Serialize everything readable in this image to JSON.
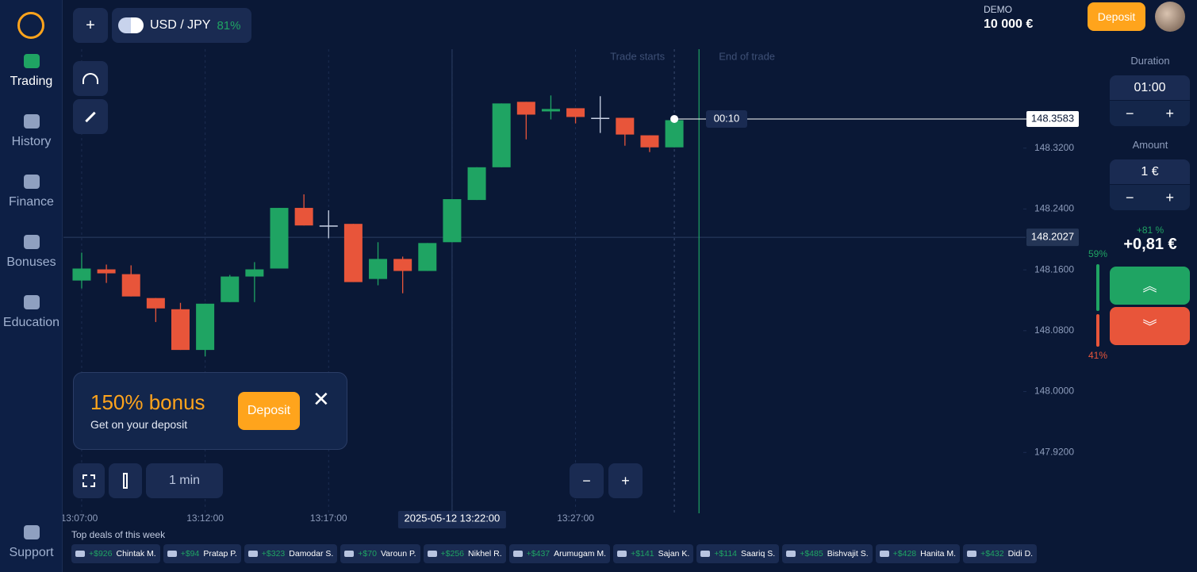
{
  "sidebar": {
    "items": [
      "Trading",
      "History",
      "Finance",
      "Bonuses",
      "Education"
    ],
    "support": "Support"
  },
  "header": {
    "pair": "USD / JPY",
    "payout": "81%",
    "account": "DEMO",
    "balance": "10 000 €",
    "deposit": "Deposit"
  },
  "panel": {
    "duration_label": "Duration",
    "duration": "01:00",
    "amount_label": "Amount",
    "amount": "1 €",
    "minus": "−",
    "plus": "+",
    "profit_percent": "+81 %",
    "profit": "+0,81 €"
  },
  "bonus": {
    "title": "150% bonus",
    "text": "Get on your deposit",
    "button": "Deposit"
  },
  "tools": {
    "timeframe": "1 min",
    "zoom_out": "−",
    "zoom_in": "+"
  },
  "deals": {
    "title": "Top deals of this week",
    "items": [
      {
        "amount": "+$926",
        "name": "Chintak M."
      },
      {
        "amount": "+$94",
        "name": "Pratap P."
      },
      {
        "amount": "+$323",
        "name": "Damodar S."
      },
      {
        "amount": "+$70",
        "name": "Varoun P."
      },
      {
        "amount": "+$256",
        "name": "Nikhel R."
      },
      {
        "amount": "+$437",
        "name": "Arumugam M."
      },
      {
        "amount": "+$141",
        "name": "Sajan K."
      },
      {
        "amount": "+$114",
        "name": "Saariq S."
      },
      {
        "amount": "+$485",
        "name": "Bishvajit S."
      },
      {
        "amount": "+$428",
        "name": "Hanita M."
      },
      {
        "amount": "+$432",
        "name": "Didi D."
      }
    ]
  },
  "chart_data": {
    "type": "candlestick",
    "categories": [
      "13:07:00",
      null,
      null,
      null,
      null,
      "13:12:00",
      null,
      null,
      null,
      null,
      "13:17:00",
      null,
      null,
      null,
      null,
      "2025-05-12 13:22:00",
      null,
      null,
      null,
      null,
      "13:27:00",
      null,
      null,
      null,
      null
    ],
    "open": [
      148.1459,
      148.1606,
      148.1543,
      148.1229,
      148.1082,
      148.0547,
      148.1176,
      148.1512,
      148.1617,
      148.2414,
      148.2183,
      148.2204,
      148.148,
      148.1743,
      148.1585,
      148.1963,
      148.2518,
      148.2948,
      148.3808,
      148.3682,
      148.3724,
      148.3598,
      148.3598,
      148.3368,
      148.321
    ],
    "high": [
      148.1826,
      148.1669,
      148.1659,
      148.1229,
      148.1166,
      148.1155,
      148.1533,
      148.1701,
      148.2414,
      148.2592,
      148.2382,
      148.2204,
      148.1963,
      148.1774,
      148.1952,
      148.2529,
      148.2948,
      148.3787,
      148.3808,
      148.3892,
      148.3724,
      148.3882,
      148.3598,
      148.3368,
      148.3567
    ],
    "low": [
      148.1355,
      148.1428,
      148.125,
      148.0914,
      148.0547,
      148.0463,
      148.1176,
      148.1176,
      148.1617,
      148.2183,
      148.2015,
      148.1439,
      148.1397,
      148.1292,
      148.1585,
      148.1963,
      148.2518,
      148.2948,
      148.3315,
      148.3577,
      148.3525,
      148.3399,
      148.3231,
      148.3148,
      148.321
    ],
    "close": [
      148.1617,
      148.1554,
      148.125,
      148.1093,
      148.0547,
      148.1155,
      148.1512,
      148.1606,
      148.2414,
      148.2183,
      148.2183,
      148.1439,
      148.1743,
      148.1585,
      148.1952,
      148.2529,
      148.2948,
      148.3787,
      148.364,
      148.3714,
      148.3609,
      148.3598,
      148.3378,
      148.321,
      148.3567
    ],
    "up_color": "#1fa463",
    "down_color": "#e8553a",
    "ylim": [
      147.84,
      148.45
    ],
    "yticks": [
      {
        "value": 147.92,
        "label": "147.9200"
      },
      {
        "value": 148.0,
        "label": "148.0000"
      },
      {
        "value": 148.08,
        "label": "148.0800"
      },
      {
        "value": 148.16,
        "label": "148.1600"
      },
      {
        "value": 148.24,
        "label": "148.2400"
      },
      {
        "value": 148.32,
        "label": "148.3200"
      }
    ],
    "current_price": {
      "value": 148.3583,
      "label": "148.3583"
    },
    "crosshair_price": {
      "value": 148.2027,
      "label": "148.2027"
    },
    "timer": "00:10",
    "trade_starts": "Trade starts",
    "end_of_trade": "End of trade",
    "sentiment": {
      "values": [
        59,
        41
      ],
      "value_labels": [
        "59%",
        "41%"
      ]
    }
  }
}
